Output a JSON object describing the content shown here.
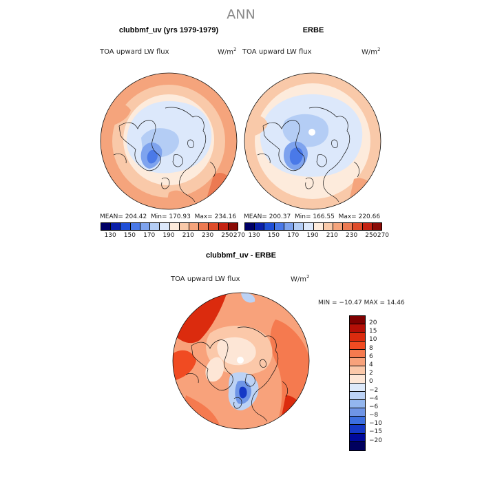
{
  "figure": {
    "title": "ANN"
  },
  "panels": [
    {
      "title": "clubbmf_uv (yrs 1979-1979)",
      "field": "TOA upward LW flux",
      "units_base": "W/m",
      "units_exp": "2",
      "mean_text": "MEAN= 204.42",
      "min_text": "Min= 170.93",
      "max_text": "Max= 234.16",
      "colorbar_ticks": [
        "130",
        "150",
        "170",
        "190",
        "210",
        "230",
        "250",
        "270"
      ]
    },
    {
      "title": "ERBE",
      "field": "TOA upward LW flux",
      "units_base": "W/m",
      "units_exp": "2",
      "mean_text": "MEAN= 200.37",
      "min_text": "Min= 166.55",
      "max_text": "Max= 220.66",
      "colorbar_ticks": [
        "130",
        "150",
        "170",
        "190",
        "210",
        "230",
        "250",
        "270"
      ]
    },
    {
      "title": "clubbmf_uv - ERBE",
      "field": "TOA upward LW flux",
      "units_base": "W/m",
      "units_exp": "2",
      "minmax_text": "MIN = −10.47  MAX =  14.46",
      "colorbar_ticks": [
        "20",
        "15",
        "10",
        "8",
        "6",
        "4",
        "2",
        "0",
        "−2",
        "−4",
        "−6",
        "−8",
        "−10",
        "−15",
        "−20"
      ]
    }
  ],
  "colors": {
    "abs_scale": [
      "#000066",
      "#0a1fa8",
      "#1f4fd6",
      "#4a79e8",
      "#7ea3ee",
      "#b4cdf5",
      "#dce8fb",
      "#fdebdc",
      "#f9c9a9",
      "#f5a47c",
      "#ec7a52",
      "#df4c2a",
      "#c42212",
      "#8a0b06"
    ],
    "diff_scale": [
      "#7f0000",
      "#b50f06",
      "#db2b0e",
      "#f04b22",
      "#f57a4f",
      "#f8a27b",
      "#fbc8a9",
      "#fde6d6",
      "#dde9fa",
      "#bcd2f5",
      "#93b6ee",
      "#6f95e6",
      "#3d6fe0",
      "#1538c6",
      "#00099b",
      "#00005e"
    ],
    "coast": "#111111"
  },
  "map_data": [
    {
      "type": "polar-stereographic",
      "hemisphere": "north",
      "field": "model",
      "description": "north pole map"
    },
    {
      "type": "polar-stereographic",
      "hemisphere": "north",
      "field": "observed"
    },
    {
      "type": "polar-stereographic",
      "hemisphere": "north",
      "field": "difference"
    }
  ]
}
